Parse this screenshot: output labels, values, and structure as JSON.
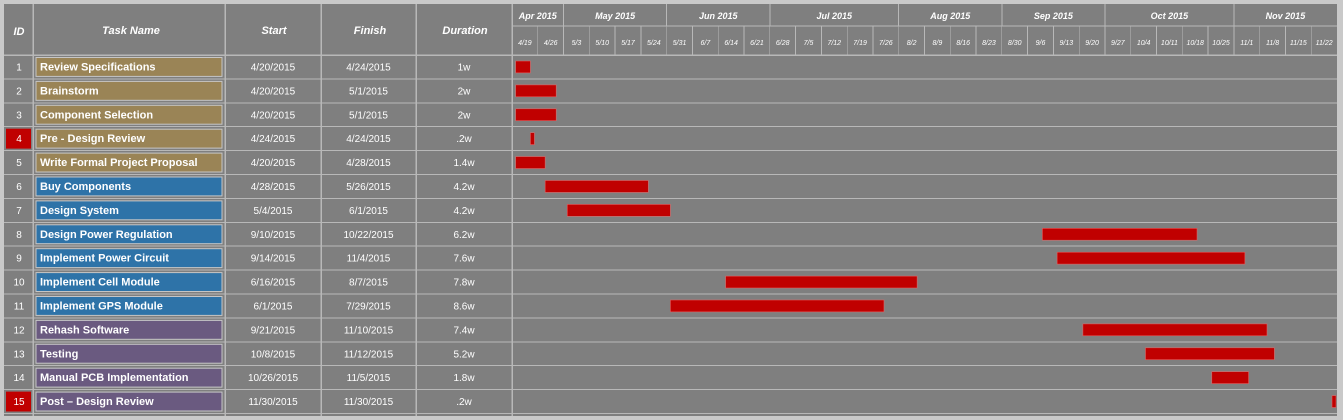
{
  "colors": {
    "background": "#7f7f7f",
    "bar": "#c00000",
    "milestone_id": "#c00000",
    "group_tan": "#9a8456",
    "group_blue": "#2e73a8",
    "group_purple": "#6a5a80"
  },
  "chart_data": {
    "type": "gantt",
    "columns": {
      "id": "ID",
      "task": "Task Name",
      "start": "Start",
      "finish": "Finish",
      "duration": "Duration"
    },
    "timeline_start": "2015-04-19",
    "timeline_end": "2015-11-29",
    "months": [
      {
        "label": "Apr 2015",
        "start": "2015-04-19",
        "end": "2015-05-03"
      },
      {
        "label": "May 2015",
        "start": "2015-05-03",
        "end": "2015-05-31"
      },
      {
        "label": "Jun 2015",
        "start": "2015-05-31",
        "end": "2015-06-28"
      },
      {
        "label": "Jul 2015",
        "start": "2015-06-28",
        "end": "2015-08-02"
      },
      {
        "label": "Aug 2015",
        "start": "2015-08-02",
        "end": "2015-08-30"
      },
      {
        "label": "Sep 2015",
        "start": "2015-08-30",
        "end": "2015-09-27"
      },
      {
        "label": "Oct 2015",
        "start": "2015-09-27",
        "end": "2015-11-01"
      },
      {
        "label": "Nov 2015",
        "start": "2015-11-01",
        "end": "2015-11-29"
      }
    ],
    "weeks": [
      "4/19",
      "4/26",
      "5/3",
      "5/10",
      "5/17",
      "5/24",
      "5/31",
      "6/7",
      "6/14",
      "6/21",
      "6/28",
      "7/5",
      "7/12",
      "7/19",
      "7/26",
      "8/2",
      "8/9",
      "8/16",
      "8/23",
      "8/30",
      "9/6",
      "9/13",
      "9/20",
      "9/27",
      "10/4",
      "10/11",
      "10/18",
      "10/25",
      "11/1",
      "11/8",
      "11/15",
      "11/22"
    ],
    "tasks": [
      {
        "id": "1",
        "name": "Review Specifications",
        "start": "4/20/2015",
        "finish": "4/24/2015",
        "duration": "1w",
        "start_iso": "2015-04-20",
        "finish_iso": "2015-04-24",
        "group": "tan",
        "milestone": false
      },
      {
        "id": "2",
        "name": "Brainstorm",
        "start": "4/20/2015",
        "finish": "5/1/2015",
        "duration": "2w",
        "start_iso": "2015-04-20",
        "finish_iso": "2015-05-01",
        "group": "tan",
        "milestone": false
      },
      {
        "id": "3",
        "name": "Component Selection",
        "start": "4/20/2015",
        "finish": "5/1/2015",
        "duration": "2w",
        "start_iso": "2015-04-20",
        "finish_iso": "2015-05-01",
        "group": "tan",
        "milestone": false
      },
      {
        "id": "4",
        "name": "Pre - Design Review",
        "start": "4/24/2015",
        "finish": "4/24/2015",
        "duration": ".2w",
        "start_iso": "2015-04-24",
        "finish_iso": "2015-04-24",
        "group": "tan",
        "milestone": true
      },
      {
        "id": "5",
        "name": "Write Formal Project Proposal",
        "start": "4/20/2015",
        "finish": "4/28/2015",
        "duration": "1.4w",
        "start_iso": "2015-04-20",
        "finish_iso": "2015-04-28",
        "group": "tan",
        "milestone": false
      },
      {
        "id": "6",
        "name": "Buy Components",
        "start": "4/28/2015",
        "finish": "5/26/2015",
        "duration": "4.2w",
        "start_iso": "2015-04-28",
        "finish_iso": "2015-05-26",
        "group": "blue",
        "milestone": false
      },
      {
        "id": "7",
        "name": "Design System",
        "start": "5/4/2015",
        "finish": "6/1/2015",
        "duration": "4.2w",
        "start_iso": "2015-05-04",
        "finish_iso": "2015-06-01",
        "group": "blue",
        "milestone": false
      },
      {
        "id": "8",
        "name": "Design Power Regulation",
        "start": "9/10/2015",
        "finish": "10/22/2015",
        "duration": "6.2w",
        "start_iso": "2015-09-10",
        "finish_iso": "2015-10-22",
        "group": "blue",
        "milestone": false
      },
      {
        "id": "9",
        "name": "Implement Power Circuit",
        "start": "9/14/2015",
        "finish": "11/4/2015",
        "duration": "7.6w",
        "start_iso": "2015-09-14",
        "finish_iso": "2015-11-04",
        "group": "blue",
        "milestone": false
      },
      {
        "id": "10",
        "name": "Implement Cell Module",
        "start": "6/16/2015",
        "finish": "8/7/2015",
        "duration": "7.8w",
        "start_iso": "2015-06-16",
        "finish_iso": "2015-08-07",
        "group": "blue",
        "milestone": false
      },
      {
        "id": "11",
        "name": "Implement GPS Module",
        "start": "6/1/2015",
        "finish": "7/29/2015",
        "duration": "8.6w",
        "start_iso": "2015-06-01",
        "finish_iso": "2015-07-29",
        "group": "blue",
        "milestone": false
      },
      {
        "id": "12",
        "name": "Rehash Software",
        "start": "9/21/2015",
        "finish": "11/10/2015",
        "duration": "7.4w",
        "start_iso": "2015-09-21",
        "finish_iso": "2015-11-10",
        "group": "purple",
        "milestone": false
      },
      {
        "id": "13",
        "name": "Testing",
        "start": "10/8/2015",
        "finish": "11/12/2015",
        "duration": "5.2w",
        "start_iso": "2015-10-08",
        "finish_iso": "2015-11-12",
        "group": "purple",
        "milestone": false
      },
      {
        "id": "14",
        "name": "Manual PCB Implementation",
        "start": "10/26/2015",
        "finish": "11/5/2015",
        "duration": "1.8w",
        "start_iso": "2015-10-26",
        "finish_iso": "2015-11-05",
        "group": "purple",
        "milestone": false
      },
      {
        "id": "15",
        "name": "Post – Design Review",
        "start": "11/30/2015",
        "finish": "11/30/2015",
        "duration": ".2w",
        "start_iso": "2015-11-30",
        "finish_iso": "2015-11-30",
        "group": "purple",
        "milestone": true
      }
    ]
  }
}
